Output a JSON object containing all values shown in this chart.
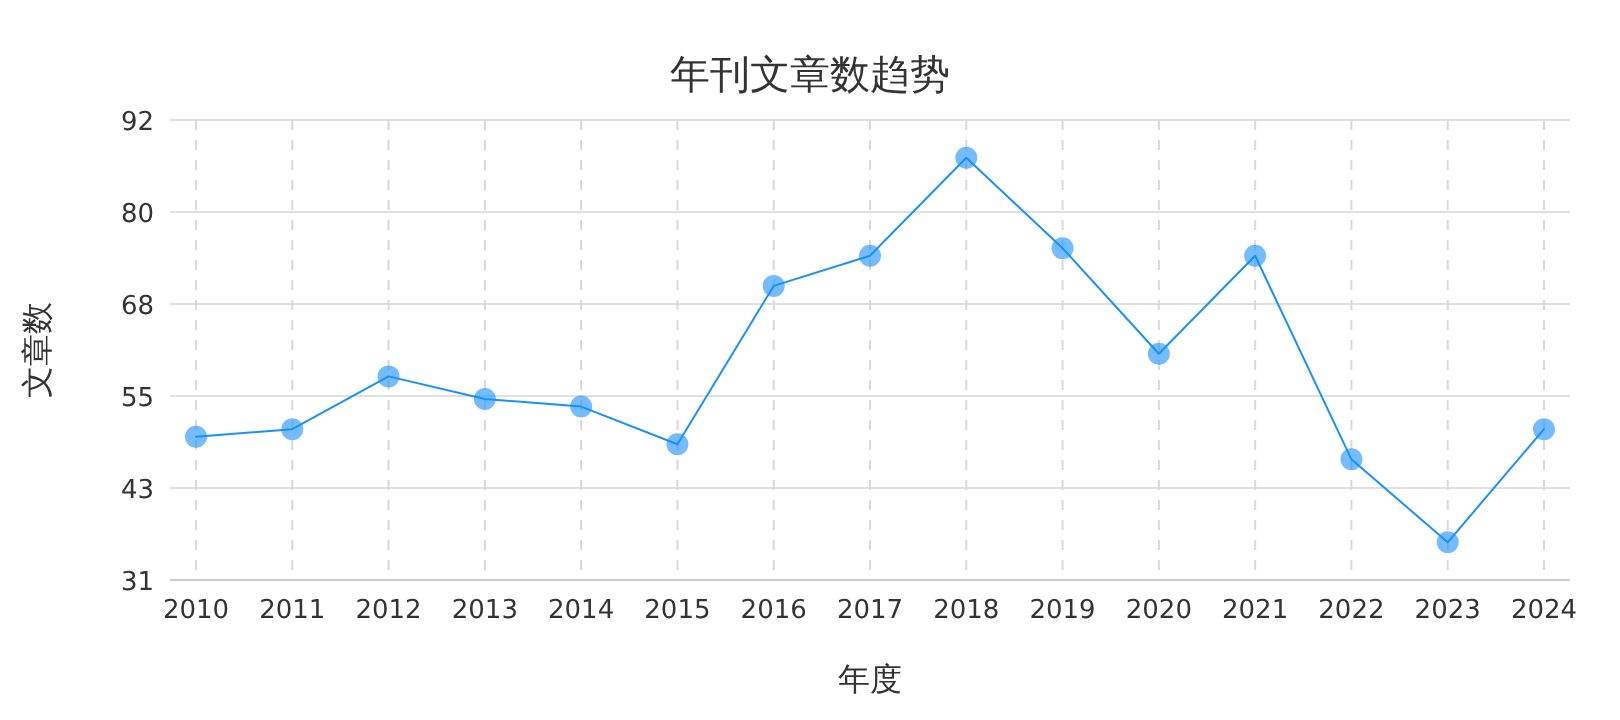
{
  "chart_data": {
    "type": "line",
    "title": "年刊文章数趋势",
    "xlabel": "年度",
    "ylabel": "文章数",
    "categories": [
      "2010",
      "2011",
      "2012",
      "2013",
      "2014",
      "2015",
      "2016",
      "2017",
      "2018",
      "2019",
      "2020",
      "2021",
      "2022",
      "2023",
      "2024"
    ],
    "series": [
      {
        "color": "#1890ff",
        "values": [
          50,
          51,
          58,
          55,
          54,
          49,
          70,
          74,
          87,
          75,
          61,
          74,
          47,
          36,
          51
        ]
      }
    ],
    "ylim": [
      31,
      92
    ],
    "yticks": [
      31,
      {
        "value": 43.2,
        "label": "43"
      },
      {
        "value": 55.4,
        "label": "55"
      },
      {
        "value": 67.6,
        "label": "68"
      },
      {
        "value": 79.8,
        "label": "80"
      },
      92
    ],
    "grid": true,
    "marker": "circle",
    "line_style": "solid"
  }
}
